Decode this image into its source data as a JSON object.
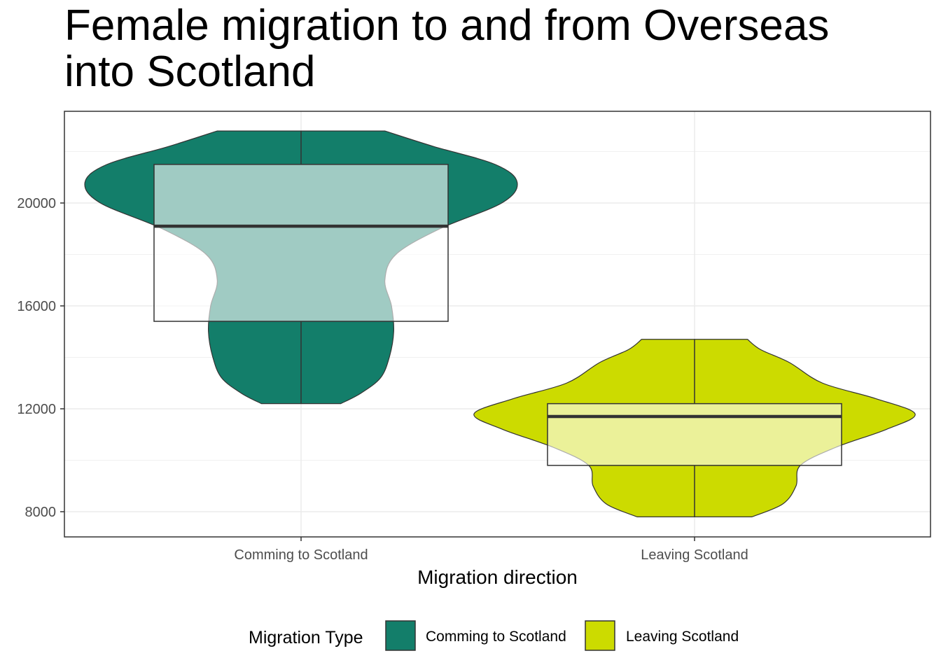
{
  "chart_data": {
    "type": "violin+box",
    "title": "Female migration to and from Overseas into Scotland",
    "xlabel": "Migration direction",
    "ylabel": "",
    "ylim": [
      7000,
      23500
    ],
    "yticks": [
      8000,
      12000,
      16000,
      20000
    ],
    "ytick_labels": [
      "8000",
      "12000",
      "16000",
      "20000"
    ],
    "grid": true,
    "legend": {
      "title": "Migration Type",
      "position": "bottom",
      "entries": [
        "Comming to Scotland",
        "Leaving Scotland"
      ]
    },
    "categories": [
      "Comming to Scotland",
      "Leaving Scotland"
    ],
    "series": [
      {
        "name": "Comming to Scotland",
        "color": "#137E6A",
        "box_fill": "#99C4BD",
        "violin": {
          "ymin": 12200,
          "ymax": 22800,
          "density": [
            [
              12200,
              0.18
            ],
            [
              12600,
              0.27
            ],
            [
              13200,
              0.36
            ],
            [
              14000,
              0.4
            ],
            [
              15000,
              0.42
            ],
            [
              16000,
              0.41
            ],
            [
              17000,
              0.38
            ],
            [
              18000,
              0.43
            ],
            [
              19000,
              0.63
            ],
            [
              20000,
              0.91
            ],
            [
              20800,
              0.98
            ],
            [
              21500,
              0.88
            ],
            [
              22200,
              0.6
            ],
            [
              22800,
              0.38
            ]
          ]
        },
        "box": {
          "q1": 15400,
          "median": 19100,
          "q3": 21500
        }
      },
      {
        "name": "Leaving Scotland",
        "color": "#CCDB00",
        "box_fill": "#E7EE8F",
        "violin": {
          "ymin": 7800,
          "ymax": 14700,
          "density": [
            [
              7800,
              0.26
            ],
            [
              8300,
              0.4
            ],
            [
              9000,
              0.46
            ],
            [
              9800,
              0.48
            ],
            [
              10500,
              0.64
            ],
            [
              11200,
              0.87
            ],
            [
              11800,
              1.0
            ],
            [
              12400,
              0.82
            ],
            [
              13000,
              0.58
            ],
            [
              13800,
              0.43
            ],
            [
              14300,
              0.3
            ],
            [
              14700,
              0.24
            ]
          ]
        },
        "box": {
          "q1": 9800,
          "median": 11700,
          "q3": 12200
        }
      }
    ]
  }
}
